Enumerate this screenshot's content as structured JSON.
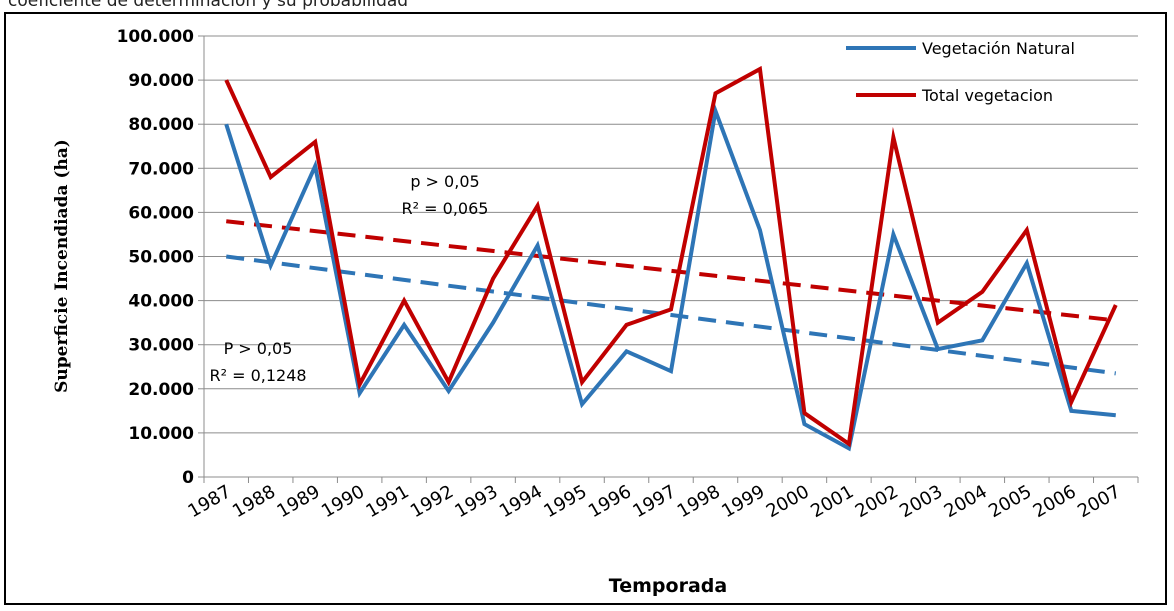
{
  "caption": "coeficiente de determinación y su probabilidad",
  "chart_data": {
    "type": "line",
    "title": "",
    "xlabel": "Temporada",
    "ylabel": "Superficie Incendiada (ha)",
    "ylim": [
      0,
      100000
    ],
    "yticks": [
      0,
      10000,
      20000,
      30000,
      40000,
      50000,
      60000,
      70000,
      80000,
      90000,
      100000
    ],
    "ytick_labels": [
      "0",
      "10.000",
      "20.000",
      "30.000",
      "40.000",
      "50.000",
      "60.000",
      "70.000",
      "80.000",
      "90.000",
      "100.000"
    ],
    "grid": "horizontal",
    "legend_position": "top-right",
    "categories": [
      "1987",
      "1988",
      "1989",
      "1990",
      "1991",
      "1992",
      "1993",
      "1994",
      "1995",
      "1996",
      "1997",
      "1998",
      "1999",
      "2000",
      "2001",
      "2002",
      "2003",
      "2004",
      "2005",
      "2006",
      "2007"
    ],
    "series": [
      {
        "name": "Vegetación Natural",
        "color": "#2e75b6",
        "values": [
          80000,
          48000,
          70500,
          19000,
          34500,
          19500,
          35000,
          52500,
          16500,
          28500,
          24000,
          83000,
          56000,
          12000,
          6500,
          55000,
          29000,
          31000,
          48500,
          15000,
          14000
        ]
      },
      {
        "name": "Total vegetacion",
        "color": "#c00000",
        "values": [
          90000,
          68000,
          76000,
          21000,
          40000,
          21500,
          45000,
          61500,
          21500,
          34500,
          38000,
          87000,
          92500,
          14500,
          7500,
          77000,
          35000,
          42000,
          56000,
          17000,
          39000
        ]
      }
    ],
    "trendlines": [
      {
        "series": "Vegetación Natural",
        "color": "#2e75b6",
        "start": 50000,
        "end": 23500
      },
      {
        "series": "Total vegetacion",
        "color": "#c00000",
        "start": 58000,
        "end": 35500
      }
    ],
    "annotations": {
      "red_p": "p > 0,05",
      "red_r2": "R² = 0,065",
      "blue_p": "P > 0,05",
      "blue_r2": "R² = 0,1248"
    }
  }
}
